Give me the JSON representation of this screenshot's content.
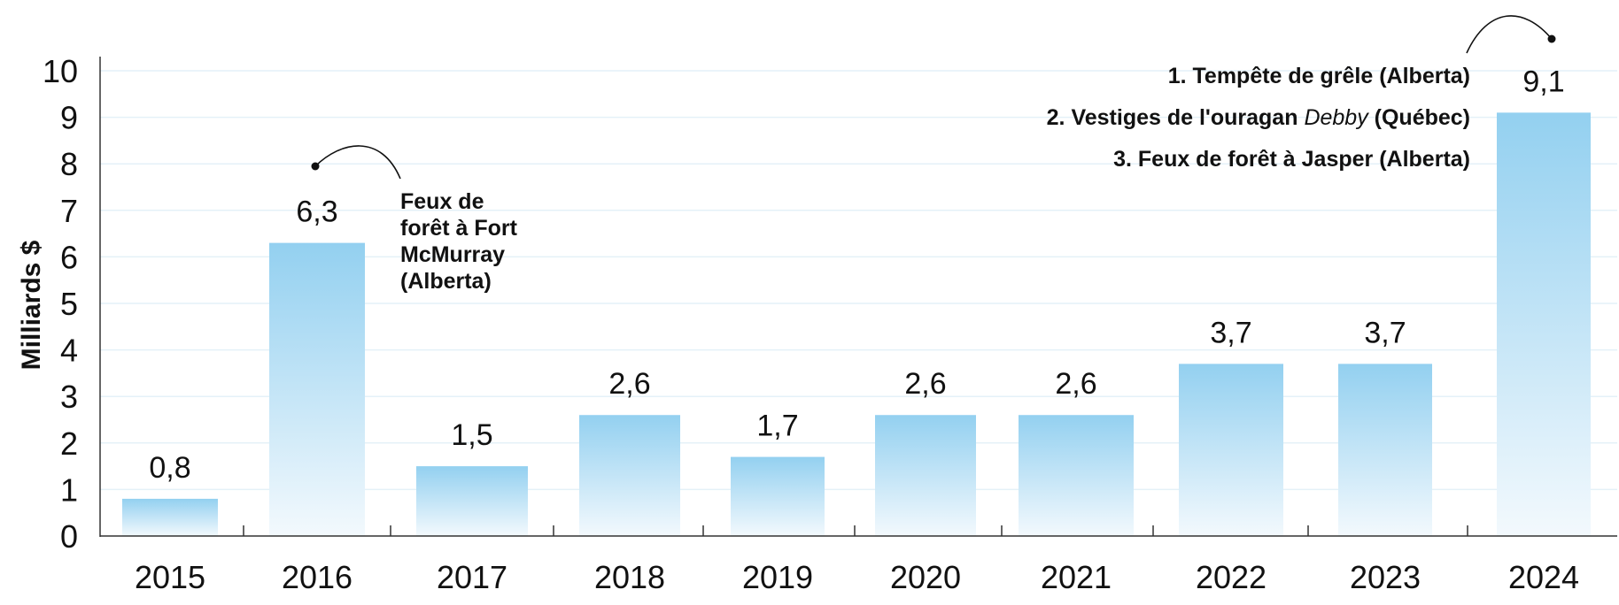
{
  "chart_data": {
    "type": "bar",
    "categories": [
      "2015",
      "2016",
      "2017",
      "2018",
      "2019",
      "2020",
      "2021",
      "2022",
      "2023",
      "2024"
    ],
    "values": [
      0.8,
      6.3,
      1.5,
      2.6,
      1.7,
      2.6,
      2.6,
      3.7,
      3.7,
      9.1
    ],
    "value_labels": [
      "0,8",
      "6,3",
      "1,5",
      "2,6",
      "1,7",
      "2,6",
      "2,6",
      "3,7",
      "3,7",
      "9,1"
    ],
    "title": "",
    "xlabel": "",
    "ylabel": "Milliards $",
    "ylim": [
      0,
      10
    ],
    "yticks": [
      "0",
      "1",
      "2",
      "3",
      "4",
      "5",
      "6",
      "7",
      "8",
      "9",
      "10"
    ],
    "grid": true,
    "colors": {
      "bar_top": "#93d0f0",
      "bar_bottom": "#f3f9fd",
      "grid": "#e4f1f8",
      "axis": "#333333",
      "text": "#111111"
    },
    "annotations": [
      {
        "category": "2016",
        "lines": [
          "Feux de",
          "forêt à Fort",
          "McMurray",
          "(Alberta)"
        ]
      },
      {
        "category": "2024",
        "lines": [
          {
            "prefix": "1. Tempête de grêle (Alberta)",
            "italic": "",
            "suffix": ""
          },
          {
            "prefix": "2. Vestiges de l'ouragan ",
            "italic": "Debby",
            "suffix": " (Québec)"
          },
          {
            "prefix": "3. Feux de forêt à Jasper (Alberta)",
            "italic": "",
            "suffix": ""
          }
        ]
      }
    ]
  }
}
